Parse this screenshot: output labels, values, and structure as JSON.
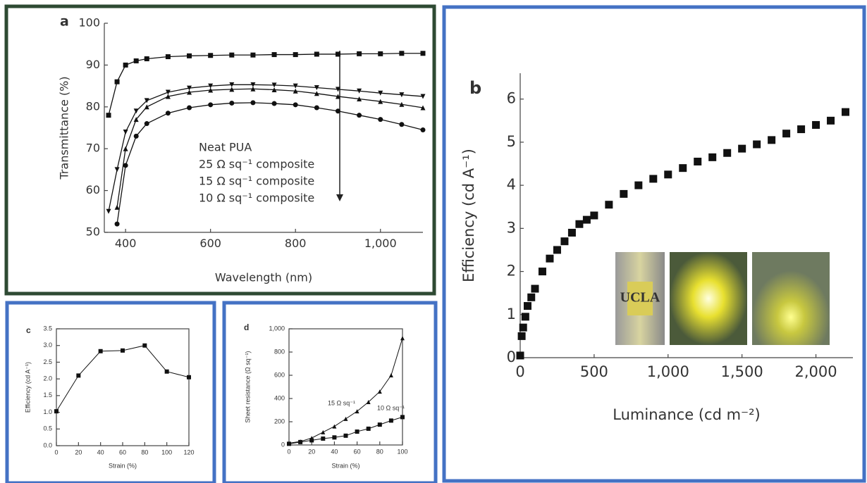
{
  "chart_data": [
    {
      "type": "line",
      "label": "a",
      "xlabel": "Wavelength (nm)",
      "ylabel": "Transmittance (%)",
      "x": [
        360,
        380,
        400,
        425,
        450,
        500,
        550,
        600,
        650,
        700,
        750,
        800,
        850,
        900,
        950,
        1000,
        1050,
        1100
      ],
      "xlim": [
        350,
        1100
      ],
      "xticks": [
        400,
        600,
        800,
        {
          "value": 1000,
          "label": "1,000"
        }
      ],
      "ylim": [
        50,
        100
      ],
      "yticks": [
        50,
        60,
        70,
        80,
        90,
        100
      ],
      "series": [
        {
          "name": "Neat PUA",
          "color": "#111111",
          "marker": "square",
          "values": [
            78,
            86,
            90,
            91,
            91.5,
            92,
            92.2,
            92.3,
            92.4,
            92.4,
            92.5,
            92.5,
            92.6,
            92.6,
            92.7,
            92.7,
            92.8,
            92.8
          ]
        },
        {
          "name": "25 Ω sq⁻¹ composite",
          "color": "#111111",
          "marker": "triangle-down",
          "values": [
            55,
            65,
            74,
            79,
            81.5,
            83.5,
            84.5,
            85,
            85.3,
            85.3,
            85.2,
            85,
            84.6,
            84.2,
            83.8,
            83.3,
            82.9,
            82.5
          ]
        },
        {
          "name": "15 Ω sq⁻¹ composite",
          "color": "#111111",
          "marker": "triangle-up",
          "values": [
            null,
            56,
            70,
            77,
            80,
            82.5,
            83.5,
            84,
            84.2,
            84.3,
            84.1,
            83.8,
            83.2,
            82.5,
            81.9,
            81.3,
            80.6,
            79.8
          ]
        },
        {
          "name": "10 Ω sq⁻¹ composite",
          "color": "#111111",
          "marker": "circle",
          "values": [
            null,
            52,
            66,
            73,
            76,
            78.5,
            79.8,
            80.5,
            80.9,
            81,
            80.8,
            80.5,
            79.8,
            79,
            78,
            77,
            75.8,
            74.5
          ]
        }
      ]
    },
    {
      "type": "scatter",
      "label": "b",
      "xlabel": "Luminance (cd m⁻²)",
      "ylabel": "Efficiency (cd A⁻¹)",
      "x": [
        0,
        10,
        20,
        35,
        50,
        75,
        100,
        150,
        200,
        250,
        300,
        350,
        400,
        450,
        500,
        600,
        700,
        800,
        900,
        1000,
        1100,
        1200,
        1300,
        1400,
        1500,
        1600,
        1700,
        1800,
        1900,
        2000,
        2100,
        2200
      ],
      "values": [
        0.05,
        0.5,
        0.7,
        0.95,
        1.2,
        1.4,
        1.6,
        2.0,
        2.3,
        2.5,
        2.7,
        2.9,
        3.1,
        3.2,
        3.3,
        3.55,
        3.8,
        4.0,
        4.15,
        4.25,
        4.4,
        4.55,
        4.65,
        4.75,
        4.85,
        4.95,
        5.05,
        5.2,
        5.3,
        5.4,
        5.5,
        5.7
      ],
      "color": "#111111",
      "marker": "square",
      "xlim": [
        0,
        2250
      ],
      "xticks": [
        0,
        500,
        {
          "value": 1000,
          "label": "1,000"
        },
        {
          "value": 1500,
          "label": "1,500"
        },
        {
          "value": 2000,
          "label": "2,000"
        }
      ],
      "ylim": [
        0,
        6.6
      ],
      "yticks": [
        0,
        1,
        2,
        3,
        4,
        5,
        6
      ],
      "inset_text": "UCLA"
    },
    {
      "type": "line",
      "label": "c",
      "xlabel": "Strain (%)",
      "ylabel": "Efficiency (cd A⁻¹)",
      "x": [
        0,
        20,
        40,
        60,
        80,
        100,
        120
      ],
      "values": [
        1.03,
        2.1,
        2.83,
        2.85,
        3.0,
        2.22,
        2.05
      ],
      "color": "#111111",
      "marker": "square",
      "xlim": [
        0,
        120
      ],
      "xticks": [
        0,
        20,
        40,
        60,
        80,
        100,
        120
      ],
      "ylim": [
        0,
        3.5
      ],
      "yticks": [
        {
          "value": 0,
          "label": "0.0"
        },
        0.5,
        {
          "value": 1,
          "label": "1.0"
        },
        1.5,
        {
          "value": 2,
          "label": "2.0"
        },
        2.5,
        {
          "value": 3,
          "label": "3.0"
        },
        3.5
      ]
    },
    {
      "type": "line",
      "label": "d",
      "xlabel": "Strain (%)",
      "ylabel": "Sheet resistance (Ω sq⁻¹)",
      "x": [
        0,
        10,
        20,
        30,
        40,
        50,
        60,
        70,
        80,
        90,
        100
      ],
      "xlim": [
        0,
        100
      ],
      "xticks": [
        0,
        20,
        40,
        60,
        80,
        100
      ],
      "ylim": [
        0,
        1000
      ],
      "yticks": [
        0,
        200,
        400,
        600,
        800,
        {
          "value": 1000,
          "label": "1,000"
        }
      ],
      "series": [
        {
          "name": "15 Ω sq⁻¹",
          "color": "#111111",
          "marker": "triangle-up",
          "values": [
            15,
            30,
            60,
            110,
            160,
            225,
            290,
            370,
            460,
            600,
            920
          ]
        },
        {
          "name": "10 Ω sq⁻¹",
          "color": "#111111",
          "marker": "square",
          "values": [
            10,
            25,
            40,
            55,
            65,
            80,
            115,
            140,
            175,
            210,
            240
          ]
        }
      ]
    }
  ]
}
